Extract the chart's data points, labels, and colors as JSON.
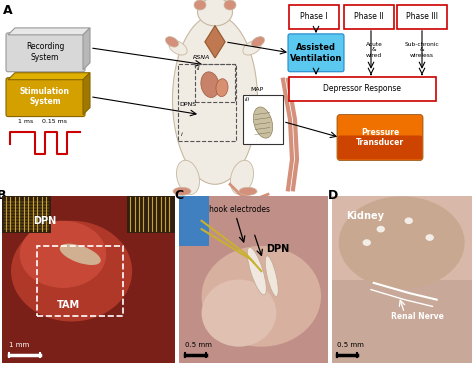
{
  "panel_A_label": "A",
  "panel_B_label": "B",
  "panel_C_label": "C",
  "panel_D_label": "D",
  "recording_system_text": "Recording\nSystem",
  "stimulation_system_text": "Stimulation\nSystem",
  "assisted_ventilation_text": "Assisted\nVentilation",
  "assisted_vent_color": "#5bc8f0",
  "phase1_text": "Phase I",
  "phase2_text": "Phase II",
  "phase3_text": "Phase III",
  "phase_box_color": "#cc0000",
  "depressor_text": "Depressor Response",
  "depressor_box_color": "#cc0000",
  "pressure_text": "Pressure\nTransducer",
  "pulse_color": "#cc0000",
  "pulse_label_1ms": "1 ms",
  "pulse_label_015ms": "0.15 ms",
  "rsna_label": "RSNA",
  "dpns_label": "DPNS",
  "map_label": "MAP",
  "roman_i": "i",
  "roman_ii": "ii",
  "roman_iii": "iii",
  "acute_wired": "Acute\n&\nwired",
  "subchronic_wireless": "Sub-chronic\n&\nwireless",
  "panel_B_scale": "1 mm",
  "panel_C_scale": "0.5 mm",
  "panel_D_scale": "0.5 mm",
  "bg_color": "#ffffff",
  "rat_body_color": "#f0ebe3",
  "rat_outline_color": "#c8b8a0",
  "rat_pink_color": "#d4907a",
  "diamond_color": "#c07850",
  "diamond_outline": "#8a5a30"
}
